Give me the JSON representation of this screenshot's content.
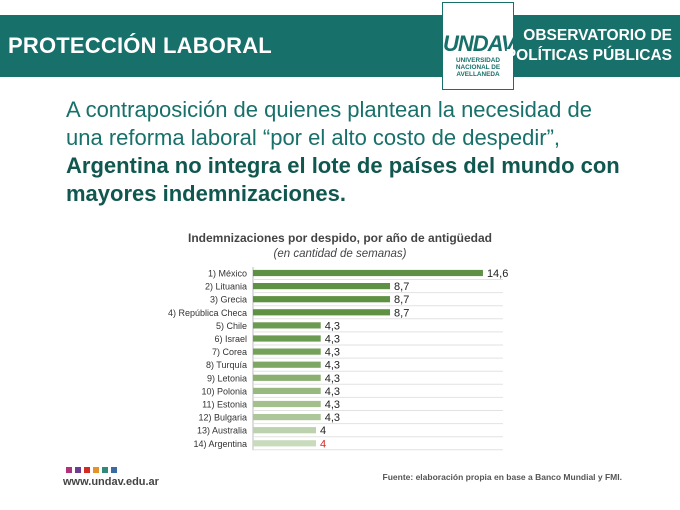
{
  "header": {
    "left_title": "PROTECCIÓN LABORAL",
    "logo_text": "UNDAV",
    "logo_subtitle": [
      "UNIVERSIDAD",
      "NACIONAL DE",
      "AVELLANEDA"
    ],
    "right_title_line1": "OBSERVATORIO DE",
    "right_title_line2": "POLÍTICAS PÚBLICAS"
  },
  "intro": {
    "normal_text": "A contraposición de quienes plantean la necesidad de una reforma laboral “por el alto costo de despedir”, ",
    "bold_text": "Argentina no integra el lote de países del mundo con mayores indemnizaciones."
  },
  "chart_data": {
    "type": "bar",
    "orientation": "horizontal",
    "title": "Indemnizaciones por despido, por año de antigüedad",
    "subtitle": "(en cantidad de semanas)",
    "categories": [
      "1) México",
      "2) Lituania",
      "3) Grecia",
      "4) República Checa",
      "5) Chile",
      "6) Israel",
      "7) Corea",
      "8) Turquía",
      "9) Letonia",
      "10) Polonia",
      "11) Estonia",
      "12) Bulgaria",
      "13) Australia",
      "14) Argentina"
    ],
    "values": [
      14.6,
      8.7,
      8.7,
      8.7,
      4.3,
      4.3,
      4.3,
      4.3,
      4.3,
      4.3,
      4.3,
      4.3,
      4,
      4
    ],
    "value_labels": [
      "14,6",
      "8,7",
      "8,7",
      "8,7",
      "4,3",
      "4,3",
      "4,3",
      "4,3",
      "4,3",
      "4,3",
      "4,3",
      "4,3",
      "4",
      "4"
    ],
    "bar_colors": [
      "#5f9145",
      "#5f9145",
      "#5f9145",
      "#5f9145",
      "#6b9b50",
      "#6b9b50",
      "#74a159",
      "#7ea764",
      "#8cb072",
      "#97b87f",
      "#a2bf8c",
      "#adc69a",
      "#bcd1ad",
      "#c9dbbd"
    ],
    "highlight_label_color": "#d62a20",
    "label_color": "#222222",
    "xlim": [
      0,
      15
    ],
    "grid": true
  },
  "footer": {
    "url": "www.undav.edu.ar",
    "source": "Fuente: elaboración propia en base a Banco Mundial y FMI.",
    "dot_colors": [
      "#b0327a",
      "#6d3d8f",
      "#d62a20",
      "#e4922a",
      "#2f8a7d",
      "#3b6ba5"
    ]
  }
}
